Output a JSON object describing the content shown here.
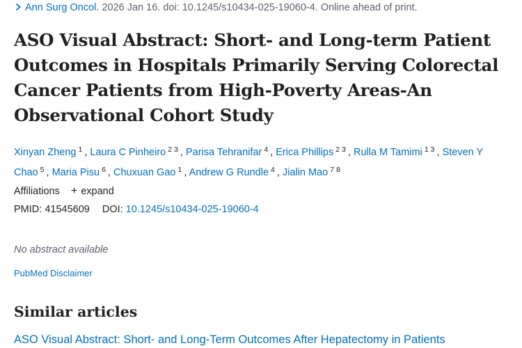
{
  "citation": {
    "journal": "Ann Surg Oncol.",
    "details": "2026 Jan 16. doi: 10.1245/s10434-025-19060-4. Online ahead of print."
  },
  "title": "ASO Visual Abstract: Short- and Long-term Patient Outcomes in Hospitals Primarily Serving Colorectal Cancer Patients from High-Poverty Areas-An Observational Cohort Study",
  "authors": [
    {
      "name": "Xinyan Zheng",
      "affils": [
        "1"
      ]
    },
    {
      "name": "Laura C Pinheiro",
      "affils": [
        "2",
        "3"
      ]
    },
    {
      "name": "Parisa Tehranifar",
      "affils": [
        "4"
      ]
    },
    {
      "name": "Erica Phillips",
      "affils": [
        "2",
        "3"
      ]
    },
    {
      "name": "Rulla M Tamimi",
      "affils": [
        "1",
        "3"
      ]
    },
    {
      "name": "Steven Y Chao",
      "affils": [
        "5"
      ]
    },
    {
      "name": "Maria Pisu",
      "affils": [
        "6"
      ]
    },
    {
      "name": "Chuxuan Gao",
      "affils": [
        "1"
      ]
    },
    {
      "name": "Andrew G Rundle",
      "affils": [
        "4"
      ]
    },
    {
      "name": "Jialin Mao",
      "affils": [
        "7",
        "8"
      ]
    }
  ],
  "affiliations": {
    "label": "Affiliations",
    "expand_label": "expand",
    "expand_icon": "plus-icon"
  },
  "ids": {
    "pmid_label": "PMID:",
    "pmid": "41545609",
    "doi_label": "DOI:",
    "doi": "10.1245/s10434-025-19060-4"
  },
  "abstract_note": "No abstract available",
  "disclaimer": "PubMed Disclaimer",
  "similar": {
    "heading": "Similar articles",
    "items": [
      "ASO Visual Abstract: Short- and Long-Term Outcomes After Hepatectomy in Patients"
    ]
  },
  "colors": {
    "link": "#0071bc",
    "text": "#212121",
    "muted": "#5b616b"
  }
}
